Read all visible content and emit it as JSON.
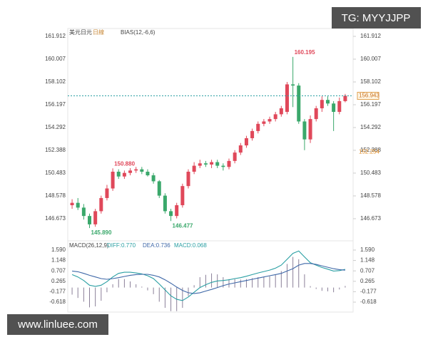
{
  "header": {
    "symbol": "美元日元",
    "period": "日線",
    "indicator": "BIAS(12,-6,6)",
    "watermark": "TG: MYYJJPP",
    "site": "www.linluee.com"
  },
  "chart_data": [
    {
      "type": "candlestick",
      "up_color": "#e0485a",
      "down_color": "#3aa86b",
      "open": [
        147.8,
        148.0,
        147.6,
        146.9,
        146.2,
        147.3,
        148.4,
        149.2,
        150.6,
        150.2,
        150.5,
        150.7,
        150.8,
        150.6,
        150.3,
        149.8,
        148.6,
        147.3,
        146.9,
        147.8,
        149.4,
        150.6,
        151.1,
        151.3,
        151.2,
        151.4,
        151.1,
        151.0,
        151.5,
        152.2,
        152.8,
        153.4,
        154.0,
        154.6,
        154.8,
        155.0,
        155.4,
        155.6,
        157.9,
        157.8,
        154.8,
        153.3,
        155.0,
        155.9,
        156.6,
        156.3,
        155.6,
        156.5
      ],
      "high": [
        148.3,
        148.4,
        147.9,
        147.1,
        147.5,
        148.6,
        149.5,
        150.88,
        150.8,
        150.7,
        150.9,
        151.0,
        151.0,
        150.8,
        150.5,
        149.9,
        148.8,
        147.5,
        148.0,
        149.6,
        150.8,
        151.4,
        151.6,
        151.5,
        151.6,
        151.6,
        151.3,
        151.7,
        152.4,
        153.0,
        153.6,
        154.2,
        154.8,
        155.0,
        155.2,
        155.6,
        156.1,
        158.1,
        160.195,
        158.0,
        155.0,
        155.3,
        156.1,
        156.9,
        156.9,
        156.5,
        156.8,
        157.1
      ],
      "low": [
        147.5,
        147.4,
        146.6,
        145.89,
        146.0,
        147.1,
        148.2,
        149.0,
        150.0,
        150.0,
        150.3,
        150.5,
        150.4,
        150.2,
        149.6,
        148.4,
        147.1,
        146.477,
        146.7,
        147.6,
        149.2,
        150.4,
        150.9,
        151.0,
        150.9,
        150.9,
        150.7,
        150.8,
        151.3,
        152.0,
        152.6,
        153.2,
        153.8,
        154.4,
        154.6,
        154.8,
        155.2,
        155.4,
        156.0,
        154.6,
        152.4,
        153.0,
        154.8,
        155.6,
        156.1,
        154.0,
        155.4,
        156.4
      ],
      "close": [
        148.0,
        147.6,
        146.9,
        146.2,
        147.3,
        148.4,
        149.2,
        150.6,
        150.2,
        150.5,
        150.7,
        150.8,
        150.6,
        150.3,
        149.8,
        148.6,
        147.3,
        146.9,
        147.8,
        149.4,
        150.6,
        151.1,
        151.3,
        151.2,
        151.4,
        151.1,
        151.0,
        151.5,
        152.2,
        152.8,
        153.4,
        154.0,
        154.6,
        154.8,
        155.0,
        155.4,
        155.9,
        157.9,
        157.8,
        154.8,
        153.3,
        155.0,
        155.9,
        156.6,
        156.3,
        155.6,
        156.5,
        156.943
      ],
      "annotations": [
        {
          "value": 160.195,
          "label": "160.195"
        },
        {
          "value": 150.88,
          "label": "150.880"
        },
        {
          "value": 145.89,
          "label": "145.890"
        },
        {
          "value": 146.477,
          "label": "146.477"
        }
      ],
      "last_price": 156.943,
      "marker_price": 152.254,
      "ylim": [
        145.3,
        162.45
      ],
      "yticks": [
        161.912,
        160.007,
        158.102,
        156.197,
        154.292,
        152.388,
        150.483,
        148.578,
        146.673
      ]
    },
    {
      "type": "macd",
      "title": "MACD(26,12,9)",
      "diff_label": "DIFF:0.770",
      "dea_label": "DEA:0.736",
      "macd_label": "MACD:0.068",
      "series": [
        {
          "name": "DIFF",
          "color": "#2a9fa3",
          "values": [
            0.55,
            0.45,
            0.3,
            0.1,
            0.05,
            0.1,
            0.25,
            0.45,
            0.6,
            0.65,
            0.65,
            0.62,
            0.58,
            0.5,
            0.38,
            0.15,
            -0.1,
            -0.35,
            -0.5,
            -0.55,
            -0.4,
            -0.2,
            0.0,
            0.12,
            0.22,
            0.28,
            0.3,
            0.33,
            0.38,
            0.42,
            0.48,
            0.55,
            0.62,
            0.68,
            0.74,
            0.82,
            0.95,
            1.2,
            1.45,
            1.55,
            1.3,
            1.05,
            0.95,
            0.85,
            0.78,
            0.7,
            0.72,
            0.77
          ]
        },
        {
          "name": "DEA",
          "color": "#3f68a8",
          "values": [
            0.7,
            0.67,
            0.6,
            0.52,
            0.45,
            0.38,
            0.35,
            0.38,
            0.42,
            0.47,
            0.52,
            0.55,
            0.56,
            0.56,
            0.52,
            0.45,
            0.33,
            0.18,
            0.02,
            -0.12,
            -0.22,
            -0.25,
            -0.22,
            -0.15,
            -0.08,
            0.0,
            0.08,
            0.15,
            0.2,
            0.25,
            0.3,
            0.35,
            0.4,
            0.45,
            0.5,
            0.55,
            0.6,
            0.7,
            0.8,
            0.95,
            1.02,
            1.02,
            0.98,
            0.92,
            0.86,
            0.8,
            0.76,
            0.736
          ]
        }
      ],
      "hist_color": "#8a7f98",
      "histogram": [
        -0.3,
        -0.44,
        -0.6,
        -0.84,
        -0.8,
        -0.56,
        -0.2,
        0.14,
        0.36,
        0.36,
        0.26,
        0.14,
        0.04,
        -0.12,
        -0.28,
        -0.6,
        -0.86,
        -1.0,
        -1.0,
        -0.86,
        -0.36,
        0.1,
        0.44,
        0.54,
        0.6,
        0.56,
        0.44,
        0.36,
        0.36,
        0.34,
        0.36,
        0.4,
        0.44,
        0.46,
        0.48,
        0.54,
        0.7,
        1.0,
        1.3,
        1.2,
        0.56,
        0.06,
        -0.06,
        -0.14,
        -0.16,
        -0.2,
        -0.08,
        0.068
      ],
      "ylim": [
        -1.04,
        1.77
      ],
      "yticks": [
        {
          "value": 1.59,
          "label": "1.590"
        },
        1.148,
        0.707,
        0.265,
        -0.177,
        -0.618
      ]
    }
  ]
}
